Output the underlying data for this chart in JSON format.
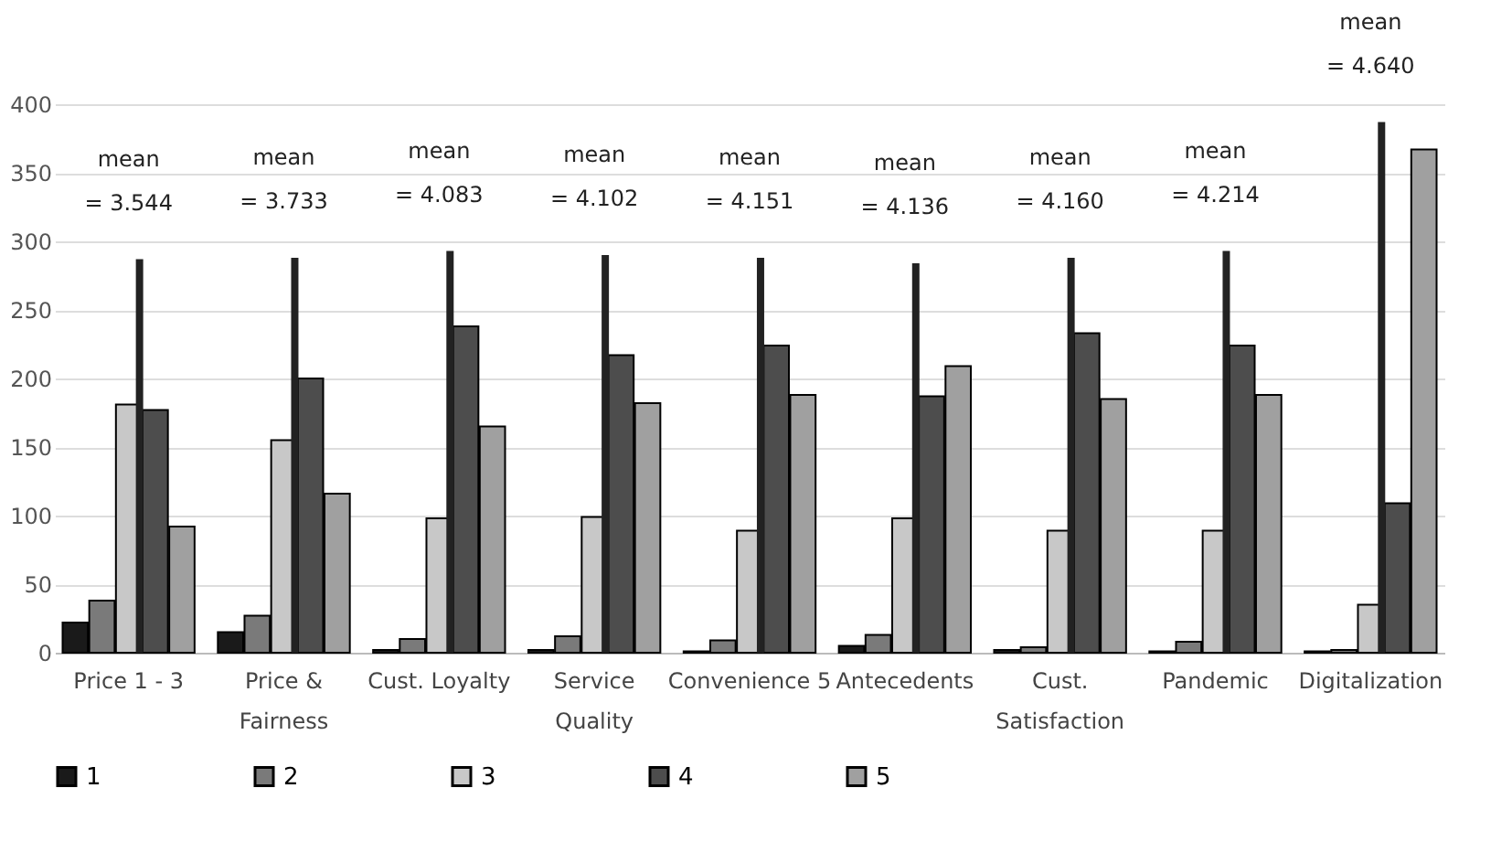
{
  "chart_data": {
    "type": "bar",
    "categories": [
      "Price 1 - 3",
      "Price & Fairness",
      "Cust. Loyalty",
      "Service Quality",
      "Convenience 5",
      "Antecedents",
      "Cust. Satisfaction",
      "Pandemic",
      "Digitalization"
    ],
    "series": [
      {
        "name": "1",
        "color": "#1a1a1a",
        "values": [
          22,
          15,
          2,
          2,
          1,
          5,
          2,
          1,
          1
        ]
      },
      {
        "name": "2",
        "color": "#7a7a7a",
        "values": [
          38,
          27,
          10,
          12,
          9,
          13,
          4,
          8,
          2
        ]
      },
      {
        "name": "3",
        "color": "#c8c8c8",
        "values": [
          181,
          155,
          98,
          99,
          89,
          98,
          89,
          89,
          35
        ]
      },
      {
        "name": "4",
        "color": "#4d4d4d",
        "values": [
          177,
          200,
          238,
          217,
          224,
          187,
          233,
          224,
          109
        ]
      },
      {
        "name": "5",
        "color": "#a0a0a0",
        "values": [
          92,
          116,
          165,
          182,
          188,
          209,
          185,
          188,
          367
        ]
      },
      {
        "type": "bar",
        "color": "#222222",
        "values": [
          287,
          288,
          293,
          290,
          288,
          284,
          288,
          293,
          387
        ]
      }
    ],
    "annotations": [
      "mean\n= 3.544",
      "mean\n= 3.733",
      "mean\n= 4.083",
      "mean\n= 4.102",
      "mean\n= 4.151",
      "mean\n= 4.136",
      "mean\n= 4.160",
      "mean\n= 4.214",
      "mean\n= 4.640"
    ],
    "ylim": [
      0,
      400
    ],
    "yticks": [
      0,
      50,
      100,
      150,
      200,
      250,
      300,
      350,
      400
    ],
    "grid": "y",
    "legend": "bottom"
  }
}
